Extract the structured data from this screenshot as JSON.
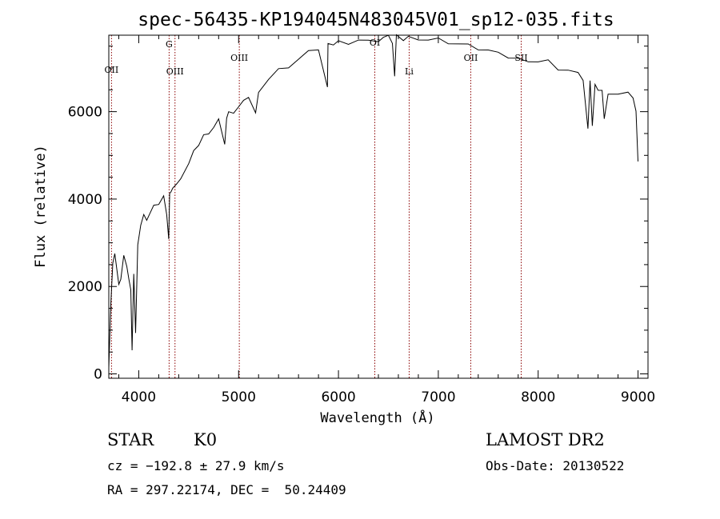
{
  "chart_data": {
    "type": "line",
    "title": "spec-56435-KP194045N483045V01_sp12-035.fits",
    "xlabel": "Wavelength (Å)",
    "ylabel": "Flux (relative)",
    "xlim": [
      3700,
      9100
    ],
    "ylim": [
      -100,
      7750
    ],
    "xticks": [
      4000,
      5000,
      6000,
      7000,
      8000,
      9000
    ],
    "xtick_labels": [
      "4000",
      "5000",
      "6000",
      "7000",
      "8000",
      "9000"
    ],
    "yticks": [
      0,
      2000,
      4000,
      6000
    ],
    "ytick_labels": [
      "0",
      "2000",
      "4000",
      "6000"
    ],
    "line_color": "#000000",
    "marker_color": "#8b0000",
    "spectral_lines": [
      {
        "label": "OII",
        "wavelength": 3727
      },
      {
        "label": "G",
        "wavelength": 4304
      },
      {
        "label": "OIII",
        "wavelength": 4363
      },
      {
        "label": "OIII",
        "wavelength": 5007
      },
      {
        "label": "OI",
        "wavelength": 6364
      },
      {
        "label": "Li",
        "wavelength": 6708
      },
      {
        "label": "OII",
        "wavelength": 7325
      },
      {
        "label": "SII",
        "wavelength": 7830
      }
    ],
    "series": [
      {
        "x": [
          3700,
          3720,
          3740,
          3760,
          3780,
          3800,
          3820,
          3850,
          3880,
          3900,
          3920,
          3933,
          3950,
          3968,
          3990,
          4020,
          4050,
          4080,
          4100,
          4150,
          4200,
          4250,
          4280,
          4300,
          4310,
          4320,
          4340,
          4380,
          4420,
          4500,
          4550,
          4600,
          4650,
          4700,
          4750,
          4800,
          4861,
          4880,
          4900,
          4950,
          5000,
          5050,
          5100,
          5170,
          5200,
          5300,
          5400,
          5500,
          5600,
          5700,
          5800,
          5890,
          5895,
          5950,
          6000,
          6100,
          6200,
          6300,
          6400,
          6450,
          6500,
          6540,
          6563,
          6580,
          6650,
          6700,
          6800,
          6900,
          7000,
          7100,
          7200,
          7300,
          7400,
          7500,
          7600,
          7700,
          7800,
          7900,
          8000,
          8100,
          8200,
          8300,
          8400,
          8450,
          8498,
          8520,
          8542,
          8570,
          8600,
          8640,
          8662,
          8700,
          8800,
          8900,
          8950,
          8980,
          9000
        ],
        "y": [
          200,
          1600,
          2500,
          2800,
          2400,
          2000,
          2200,
          2700,
          2400,
          2200,
          1900,
          600,
          2300,
          900,
          3000,
          3400,
          3600,
          3550,
          3600,
          3800,
          3900,
          4050,
          3700,
          3100,
          4100,
          4200,
          4250,
          4300,
          4500,
          4800,
          5050,
          5250,
          5450,
          5550,
          5650,
          5800,
          5300,
          5850,
          5950,
          6000,
          6100,
          6200,
          6350,
          5950,
          6500,
          6750,
          6950,
          7050,
          7200,
          7350,
          7450,
          6550,
          7500,
          7550,
          7600,
          7600,
          7650,
          7600,
          7650,
          7700,
          7700,
          7600,
          6800,
          7700,
          7650,
          7700,
          7700,
          7650,
          7650,
          7600,
          7550,
          7500,
          7450,
          7400,
          7300,
          7250,
          7200,
          7200,
          7150,
          7150,
          7000,
          6950,
          6850,
          6750,
          5600,
          6650,
          5700,
          6600,
          6550,
          6500,
          5800,
          6450,
          6400,
          6400,
          6350,
          6000,
          4800
        ]
      }
    ]
  },
  "info": {
    "object_class": "STAR",
    "subclass": "K0",
    "survey": "LAMOST DR2",
    "cz": "cz = −192.8 ± 27.9 km/s",
    "obs_date": "Obs-Date: 20130522",
    "coords": "RA = 297.22174, DEC =  50.24409"
  }
}
